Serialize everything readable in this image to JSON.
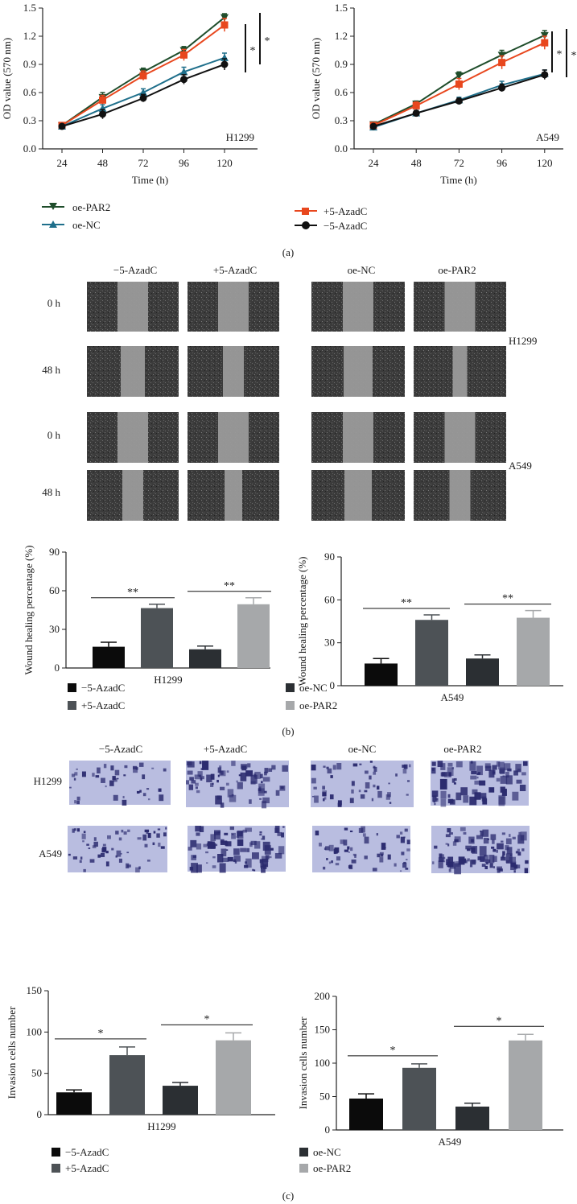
{
  "panel_labels": [
    "(a)",
    "(b)",
    "(c)"
  ],
  "colors": {
    "oe_PAR2": "#1f4d2b",
    "oe_NC": "#1f6f8b",
    "plus_aza": "#e8471e",
    "minus_aza": "#111111",
    "bar_minus": "#0b0b0b",
    "bar_plus": "#4d5256",
    "bar_oeNC": "#2b2f33",
    "bar_oePAR2": "#a6a8aa",
    "wound_bg": "#3d3d3d",
    "wound_gap": "#9a9a9a",
    "invasion_bg": "#b9bde0",
    "invasion_cell": "#2a2a6e"
  },
  "chart_data": [
    {
      "type": "line",
      "panel": "a",
      "cell_line": "H1299",
      "xlabel": "Time (h)",
      "ylabel": "OD value (570 nm)",
      "x": [
        24,
        48,
        72,
        96,
        120
      ],
      "ylim": [
        0,
        1.5
      ],
      "yticks": [
        "0.0",
        "0.3",
        "0.6",
        "0.9",
        "1.2",
        "1.5"
      ],
      "series": [
        {
          "name": "oe-PAR2",
          "values": [
            0.25,
            0.55,
            0.82,
            1.05,
            1.4
          ],
          "err": [
            0.03,
            0.05,
            0.04,
            0.04,
            0.04
          ]
        },
        {
          "name": "+5-AzadC",
          "values": [
            0.25,
            0.52,
            0.78,
            1.0,
            1.32
          ],
          "err": [
            0.03,
            0.05,
            0.05,
            0.06,
            0.07
          ]
        },
        {
          "name": "oe-NC",
          "values": [
            0.24,
            0.43,
            0.6,
            0.82,
            0.97
          ],
          "err": [
            0.02,
            0.04,
            0.04,
            0.05,
            0.05
          ]
        },
        {
          "name": "−5-AzadC",
          "values": [
            0.24,
            0.37,
            0.54,
            0.74,
            0.9
          ],
          "err": [
            0.02,
            0.05,
            0.04,
            0.05,
            0.06
          ]
        }
      ],
      "significance": [
        "*",
        "*"
      ]
    },
    {
      "type": "line",
      "panel": "a",
      "cell_line": "A549",
      "xlabel": "Time (h)",
      "ylabel": "OD value (570 nm)",
      "x": [
        24,
        48,
        72,
        96,
        120
      ],
      "ylim": [
        0,
        1.5
      ],
      "yticks": [
        "0.0",
        "0.3",
        "0.6",
        "0.9",
        "1.2",
        "1.5"
      ],
      "series": [
        {
          "name": "oe-PAR2",
          "values": [
            0.26,
            0.48,
            0.78,
            1.0,
            1.21
          ],
          "err": [
            0.02,
            0.03,
            0.04,
            0.05,
            0.05
          ]
        },
        {
          "name": "+5-AzadC",
          "values": [
            0.25,
            0.46,
            0.69,
            0.92,
            1.13
          ],
          "err": [
            0.02,
            0.04,
            0.06,
            0.07,
            0.07
          ]
        },
        {
          "name": "oe-NC",
          "values": [
            0.23,
            0.38,
            0.52,
            0.68,
            0.8
          ],
          "err": [
            0.02,
            0.03,
            0.03,
            0.04,
            0.04
          ]
        },
        {
          "name": "−5-AzadC",
          "values": [
            0.24,
            0.38,
            0.51,
            0.65,
            0.79
          ],
          "err": [
            0.02,
            0.03,
            0.03,
            0.04,
            0.05
          ]
        }
      ],
      "significance": [
        "*",
        "*"
      ]
    },
    {
      "type": "bar",
      "panel": "b",
      "cell_line": "H1299",
      "ylabel": "Wound healing percentage (%)",
      "xlabel": "H1299",
      "categories": [
        "−5-AzadC",
        "+5-AzadC",
        "oe-NC",
        "oe-PAR2"
      ],
      "values": [
        16.5,
        46.5,
        14.5,
        49.5
      ],
      "err": [
        3.5,
        3.0,
        2.5,
        5.0
      ],
      "ylim": [
        0,
        90
      ],
      "yticks": [
        "0",
        "30",
        "60",
        "90"
      ],
      "significance": [
        "**",
        "**"
      ]
    },
    {
      "type": "bar",
      "panel": "b",
      "cell_line": "A549",
      "ylabel": "Wound healing percentage (%)",
      "xlabel": "A549",
      "categories": [
        "−5-AzadC",
        "+5-AzadC",
        "oe-NC",
        "oe-PAR2"
      ],
      "values": [
        15.5,
        46.0,
        19.0,
        47.5
      ],
      "err": [
        3.5,
        3.5,
        2.5,
        5.0
      ],
      "ylim": [
        0,
        90
      ],
      "yticks": [
        "0",
        "30",
        "60",
        "90"
      ],
      "significance": [
        "**",
        "**"
      ]
    },
    {
      "type": "bar",
      "panel": "c",
      "cell_line": "H1299",
      "ylabel": "Invasion cells number",
      "xlabel": "H1299",
      "categories": [
        "−5-AzadC",
        "+5-AzadC",
        "oe-NC",
        "oe-PAR2"
      ],
      "values": [
        27,
        72,
        35,
        90
      ],
      "err": [
        3,
        10,
        4,
        9
      ],
      "ylim": [
        0,
        150
      ],
      "yticks": [
        "0",
        "50",
        "100",
        "150"
      ],
      "significance": [
        "*",
        "*"
      ]
    },
    {
      "type": "bar",
      "panel": "c",
      "cell_line": "A549",
      "ylabel": "Invasion cells number",
      "xlabel": "A549",
      "categories": [
        "−5-AzadC",
        "+5-AzadC",
        "oe-NC",
        "oe-PAR2"
      ],
      "values": [
        47,
        93,
        35,
        134
      ],
      "err": [
        7,
        6,
        5,
        9
      ],
      "ylim": [
        0,
        200
      ],
      "yticks": [
        "0",
        "50",
        "100",
        "150",
        "200"
      ],
      "significance": [
        "*",
        "*"
      ]
    }
  ],
  "legend_a": {
    "left": [
      "oe-PAR2",
      "oe-NC"
    ],
    "right": [
      "+5-AzadC",
      "−5-AzadC"
    ]
  },
  "legend_bar": {
    "left": [
      "−5-AzadC",
      "+5-AzadC"
    ],
    "right": [
      "oe-NC",
      "oe-PAR2"
    ]
  },
  "wound_panel": {
    "columns": [
      "−5-AzadC",
      "+5-AzadC",
      "oe-NC",
      "oe-PAR2"
    ],
    "rows": [
      "0 h",
      "48 h",
      "0 h",
      "48 h"
    ],
    "side_labels": [
      "H1299",
      "A549"
    ]
  },
  "invasion_panel": {
    "columns": [
      "−5-AzadC",
      "+5-AzadC",
      "oe-NC",
      "oe-PAR2"
    ],
    "rows": [
      "H1299",
      "A549"
    ]
  }
}
